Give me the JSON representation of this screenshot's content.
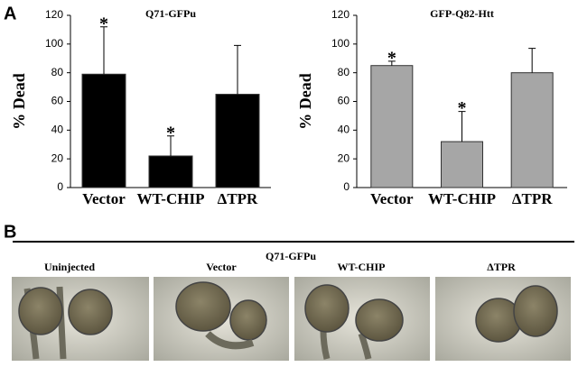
{
  "panel_labels": [
    "A",
    "B"
  ],
  "chart_data": [
    {
      "type": "bar",
      "title": "Q71-GFPu",
      "y_label": "% Dead",
      "categories": [
        "Vector",
        "WT-CHIP",
        "ΔTPR"
      ],
      "values": [
        79,
        22,
        65
      ],
      "errors": [
        33,
        14,
        34
      ],
      "markers": [
        "*",
        "*",
        null
      ],
      "color": "#000000",
      "ylim": [
        0,
        120
      ],
      "yticks": [
        0,
        20,
        40,
        60,
        80,
        100,
        120
      ]
    },
    {
      "type": "bar",
      "title": "GFP-Q82-Htt",
      "y_label": "% Dead",
      "categories": [
        "Vector",
        "WT-CHIP",
        "ΔTPR"
      ],
      "values": [
        85,
        32,
        80
      ],
      "errors": [
        3,
        21,
        17
      ],
      "markers": [
        "*",
        "*",
        null
      ],
      "color": "#a6a6a6",
      "ylim": [
        0,
        120
      ],
      "yticks": [
        0,
        20,
        40,
        60,
        80,
        100,
        120
      ]
    }
  ],
  "panel_b": {
    "title": "Q71-GFPu",
    "images": [
      "Uninjected",
      "Vector",
      "WT-CHIP",
      "ΔTPR"
    ]
  }
}
